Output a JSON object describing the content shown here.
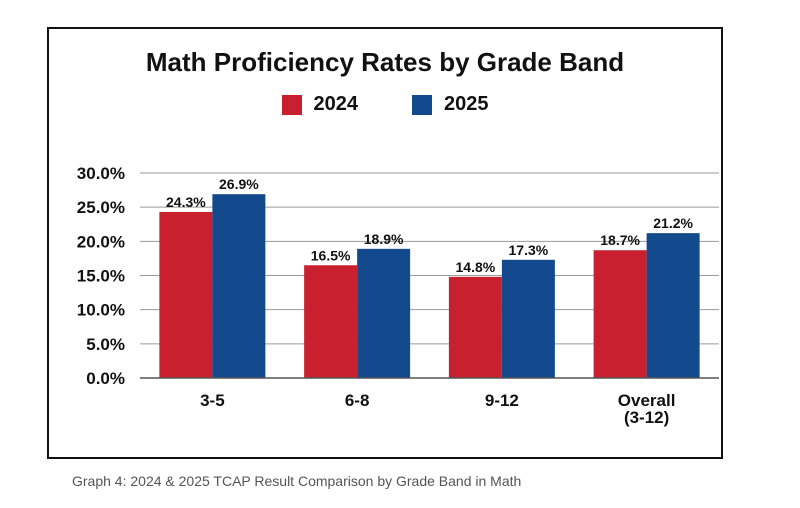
{
  "caption": "Graph 4: 2024 & 2025 TCAP Result Comparison by Grade Band in Math",
  "chart_data": {
    "type": "bar",
    "title": "Math Proficiency Rates by Grade Band",
    "categories": [
      [
        "3-5"
      ],
      [
        "6-8"
      ],
      [
        "9-12"
      ],
      [
        "Overall",
        "(3-12)"
      ]
    ],
    "series": [
      {
        "name": "2024",
        "color": "#c8202f",
        "values": [
          24.3,
          16.5,
          14.8,
          18.7
        ],
        "labels": [
          "24.3%",
          "16.5%",
          "14.8%",
          "18.7%"
        ]
      },
      {
        "name": "2025",
        "color": "#134a8e",
        "values": [
          26.9,
          18.9,
          17.3,
          21.2
        ],
        "labels": [
          "26.9%",
          "18.9%",
          "17.3%",
          "21.2%"
        ]
      }
    ],
    "ylim": [
      0,
      30
    ],
    "yticks": [
      "0.0%",
      "5.0%",
      "10.0%",
      "15.0%",
      "20.0%",
      "25.0%",
      "30.0%"
    ],
    "ytick_values": [
      0,
      5,
      10,
      15,
      20,
      25,
      30
    ],
    "grid": true,
    "legend": "top-center"
  }
}
